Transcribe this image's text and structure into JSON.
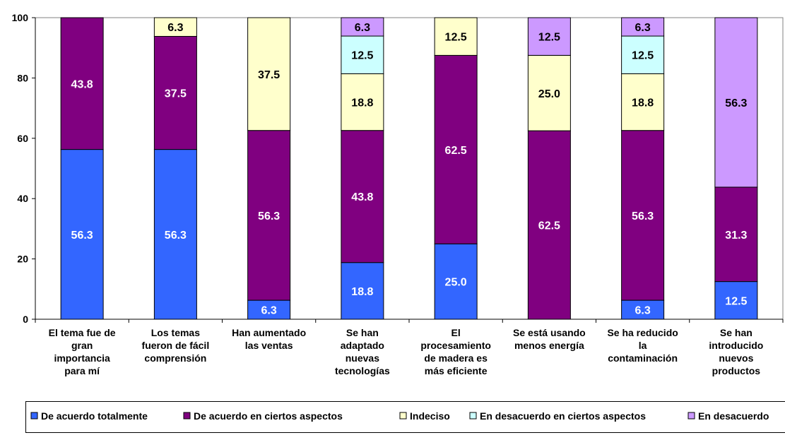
{
  "chart_data": {
    "type": "bar",
    "stacked": true,
    "categories": [
      [
        "El tema fue de",
        "gran",
        "importancia",
        "para mí"
      ],
      [
        "Los temas",
        "fueron de fácil",
        "comprensión"
      ],
      [
        "Han aumentado",
        "las ventas"
      ],
      [
        "Se han",
        "adaptado",
        "nuevas",
        "tecnologías"
      ],
      [
        "El",
        "procesamiento",
        "de madera es",
        "más eficiente"
      ],
      [
        "Se está usando",
        "menos energía"
      ],
      [
        "Se ha reducido",
        "la",
        "contaminación"
      ],
      [
        "Se han",
        "introducido",
        "nuevos",
        "productos"
      ]
    ],
    "series": [
      {
        "name": "De acuerdo totalmente",
        "color": "#3366ff",
        "values": [
          56.3,
          56.3,
          6.3,
          18.8,
          25.0,
          0,
          6.3,
          12.5
        ],
        "labels": [
          "56.3",
          "56.3",
          "6.3",
          "18.8",
          "25.0",
          "",
          "6.3",
          "12.5"
        ]
      },
      {
        "name": "De acuerdo en ciertos aspectos",
        "color": "#800080",
        "values": [
          43.8,
          37.5,
          56.3,
          43.8,
          62.5,
          62.5,
          56.3,
          31.3
        ],
        "labels": [
          "43.8",
          "37.5",
          "56.3",
          "43.8",
          "62.5",
          "62.5",
          "56.3",
          "31.3"
        ]
      },
      {
        "name": "Indeciso",
        "color": "#ffffcc",
        "values": [
          0,
          6.3,
          37.5,
          18.8,
          12.5,
          25.0,
          18.8,
          0
        ],
        "labels": [
          "",
          "6.3",
          "37.5",
          "18.8",
          "12.5",
          "25.0",
          "18.8",
          ""
        ]
      },
      {
        "name": "En desacuerdo en ciertos aspectos",
        "color": "#ccffff",
        "values": [
          0,
          0,
          0,
          12.5,
          0,
          0,
          12.5,
          0
        ],
        "labels": [
          "",
          "",
          "",
          "12.5",
          "",
          "",
          "12.5",
          ""
        ]
      },
      {
        "name": "En desacuerdo",
        "color": "#cc99ff",
        "values": [
          0,
          0,
          0,
          6.3,
          0,
          12.5,
          6.3,
          56.3
        ],
        "labels": [
          "",
          "",
          "",
          "6.3",
          "",
          "12.5",
          "6.3",
          "56.3"
        ]
      }
    ],
    "yticks": [
      "0",
      "20",
      "40",
      "60",
      "80",
      "100"
    ],
    "ylim": [
      0,
      100
    ],
    "grid": false,
    "legend": "bottom"
  }
}
